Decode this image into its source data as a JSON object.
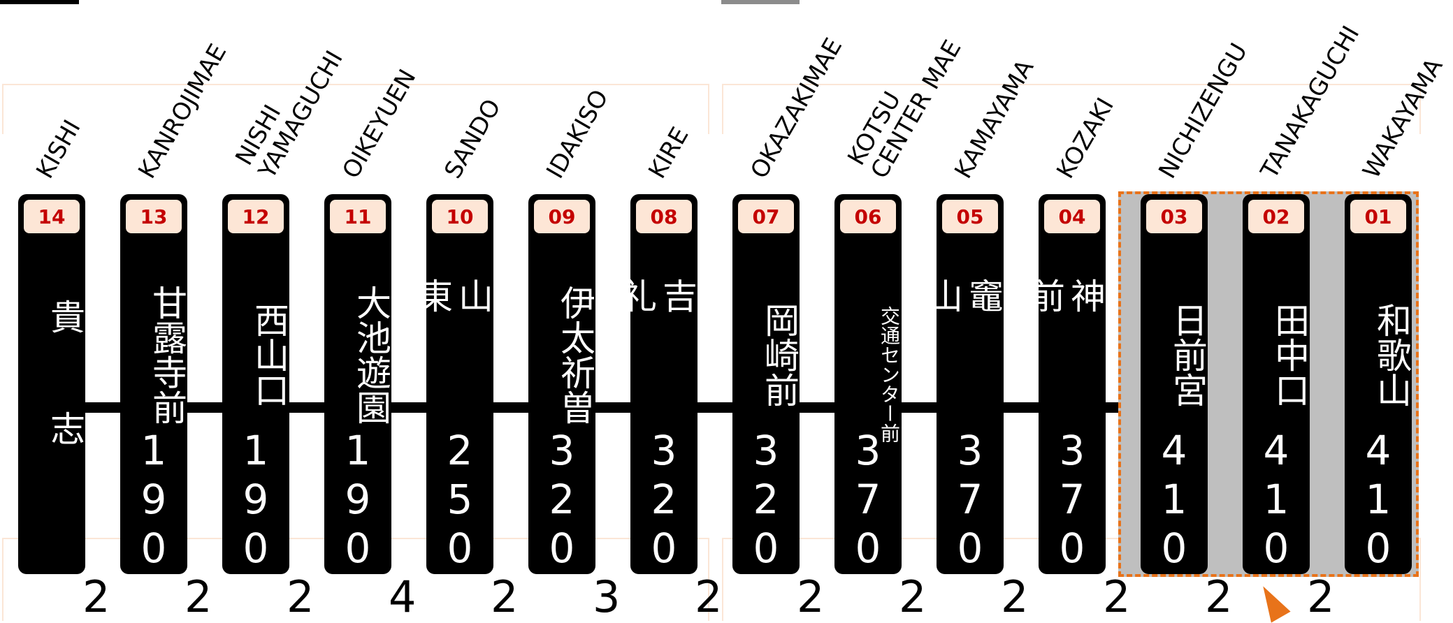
{
  "colors": {
    "bar": "#000000",
    "badge_bg": "#fde6d6",
    "badge_text": "#c40000",
    "highlight_fill": "#bfbfbf",
    "highlight_border": "#e8731a",
    "bracket": "#fbe6d6"
  },
  "stations": [
    {
      "code": "14",
      "name": "貴志",
      "roman": [
        "KISHI"
      ],
      "fare": "",
      "highlighted": false
    },
    {
      "code": "13",
      "name": "甘露寺前",
      "roman": [
        "KANROJIMAE"
      ],
      "fare": "190",
      "highlighted": false
    },
    {
      "code": "12",
      "name": "西山口",
      "roman": [
        "NISHI",
        "YAMAGUCHI"
      ],
      "fare": "190",
      "highlighted": false
    },
    {
      "code": "11",
      "name": "大池遊園",
      "roman": [
        "OIKEYUEN"
      ],
      "fare": "190",
      "highlighted": false
    },
    {
      "code": "10",
      "name": "山東",
      "roman": [
        "SANDO"
      ],
      "fare": "250",
      "highlighted": false
    },
    {
      "code": "09",
      "name": "伊太祈曽",
      "roman": [
        "IDAKISO"
      ],
      "fare": "320",
      "highlighted": false
    },
    {
      "code": "08",
      "name": "吉礼",
      "roman": [
        "KIRE"
      ],
      "fare": "320",
      "highlighted": false
    },
    {
      "code": "07",
      "name": "岡崎前",
      "roman": [
        "OKAZAKIMAE"
      ],
      "fare": "320",
      "highlighted": false
    },
    {
      "code": "06",
      "name": "交通センター前",
      "roman": [
        "KOTSU",
        "CENTER MAE"
      ],
      "fare": "370",
      "highlighted": false
    },
    {
      "code": "05",
      "name": "竈山",
      "roman": [
        "KAMAYAMA"
      ],
      "fare": "370",
      "highlighted": false
    },
    {
      "code": "04",
      "name": "神前",
      "roman": [
        "KOZAKI"
      ],
      "fare": "370",
      "highlighted": false
    },
    {
      "code": "03",
      "name": "日前宮",
      "roman": [
        "NICHIZENGU"
      ],
      "fare": "410",
      "highlighted": true
    },
    {
      "code": "02",
      "name": "田中口",
      "roman": [
        "TANAKAGUCHI"
      ],
      "fare": "410",
      "highlighted": true
    },
    {
      "code": "01",
      "name": "和歌山",
      "roman": [
        "WAKAYAMA"
      ],
      "fare": "410",
      "highlighted": true
    }
  ],
  "gaps": [
    "2",
    "2",
    "2",
    "4",
    "2",
    "3",
    "2",
    "2",
    "2",
    "2",
    "2",
    "2",
    "2"
  ]
}
